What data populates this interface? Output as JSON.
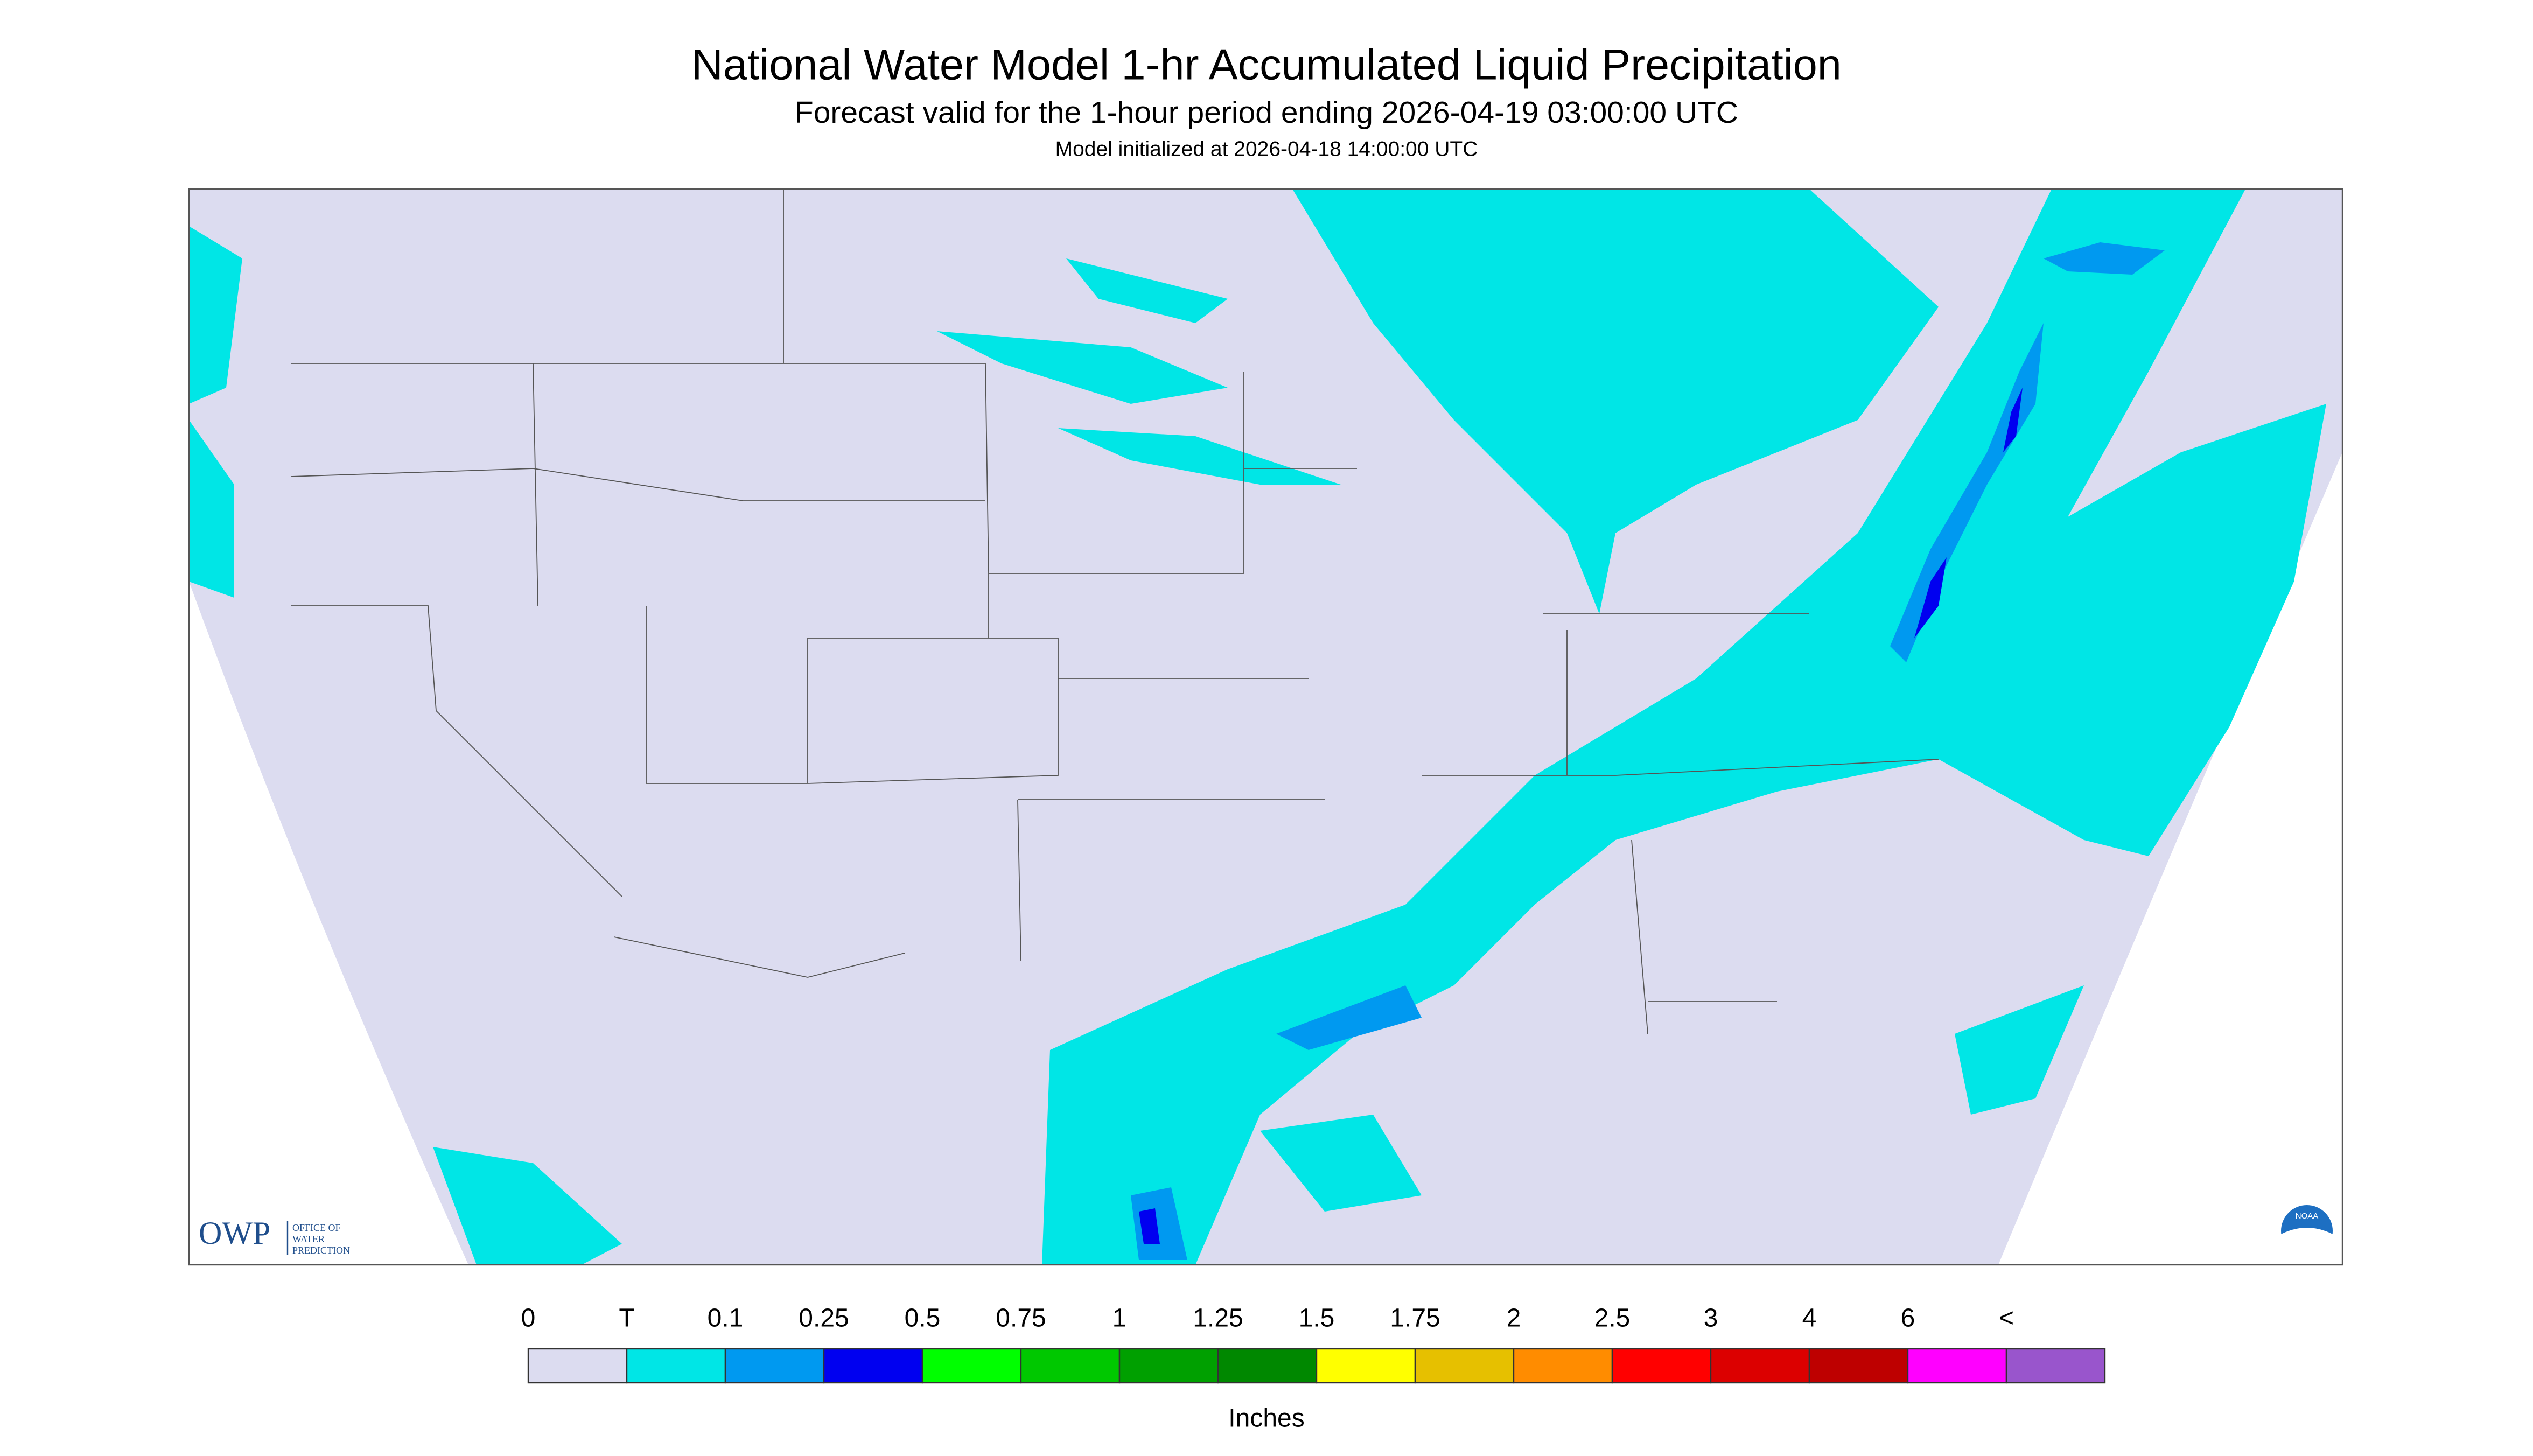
{
  "header": {
    "title": "National Water Model 1-hr Accumulated Liquid Precipitation",
    "subtitle": "Forecast valid for the 1-hour period ending 2026-04-19 03:00:00 UTC",
    "init": "Model initialized at 2026-04-18 14:00:00 UTC"
  },
  "legend": {
    "labels": [
      "0",
      "T",
      "0.1",
      "0.25",
      "0.5",
      "0.75",
      "1",
      "1.25",
      "1.5",
      "1.75",
      "2",
      "2.5",
      "3",
      "4",
      "6",
      "<"
    ],
    "colors": [
      "#dcdcf0",
      "#00e6e6",
      "#0099f0",
      "#0000f0",
      "#00ff00",
      "#00c800",
      "#00a000",
      "#008800",
      "#ffff00",
      "#e6c000",
      "#ff8c00",
      "#ff0000",
      "#dc0000",
      "#be0000",
      "#ff00ff",
      "#9955cc"
    ],
    "unit": "Inches"
  },
  "logos": {
    "owp": "OWP",
    "owp_lines": [
      "OFFICE OF",
      "WATER",
      "PREDICTION"
    ],
    "noaa": "NOAA"
  }
}
